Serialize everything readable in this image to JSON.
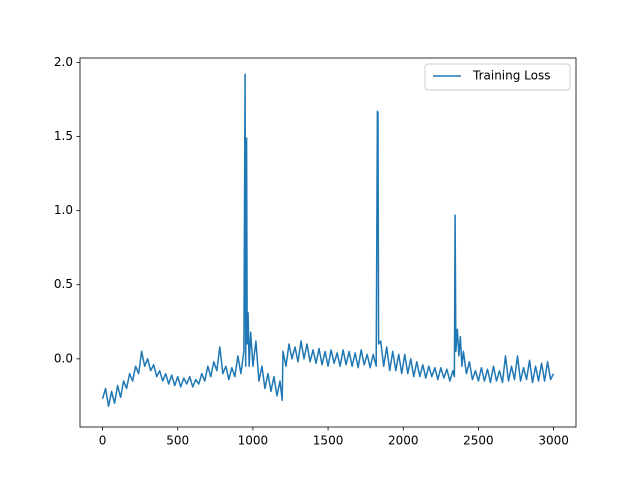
{
  "chart_data": {
    "type": "line",
    "x": [
      0,
      20,
      40,
      60,
      80,
      100,
      120,
      140,
      160,
      180,
      200,
      220,
      240,
      260,
      280,
      300,
      320,
      340,
      360,
      380,
      400,
      420,
      440,
      460,
      480,
      500,
      520,
      540,
      560,
      580,
      600,
      620,
      640,
      660,
      680,
      700,
      720,
      740,
      760,
      780,
      800,
      820,
      840,
      860,
      880,
      900,
      920,
      940,
      948,
      952,
      958,
      962,
      968,
      975,
      985,
      1000,
      1020,
      1040,
      1060,
      1080,
      1100,
      1120,
      1140,
      1160,
      1180,
      1195,
      1200,
      1220,
      1240,
      1260,
      1280,
      1300,
      1320,
      1340,
      1360,
      1380,
      1400,
      1420,
      1440,
      1460,
      1480,
      1500,
      1520,
      1540,
      1560,
      1580,
      1600,
      1620,
      1640,
      1660,
      1680,
      1700,
      1720,
      1740,
      1760,
      1780,
      1800,
      1820,
      1828,
      1832,
      1836,
      1850,
      1870,
      1890,
      1910,
      1930,
      1950,
      1970,
      1990,
      2010,
      2030,
      2050,
      2070,
      2090,
      2110,
      2130,
      2150,
      2170,
      2190,
      2210,
      2230,
      2250,
      2270,
      2290,
      2310,
      2330,
      2340,
      2345,
      2350,
      2360,
      2370,
      2380,
      2390,
      2400,
      2420,
      2440,
      2460,
      2480,
      2500,
      2520,
      2540,
      2560,
      2580,
      2600,
      2620,
      2640,
      2660,
      2680,
      2700,
      2720,
      2740,
      2760,
      2780,
      2800,
      2820,
      2840,
      2860,
      2880,
      2900,
      2920,
      2940,
      2960,
      2980,
      2999
    ],
    "series": [
      {
        "name": "Training Loss",
        "color": "#1f77b4",
        "values": [
          -0.27,
          -0.2,
          -0.32,
          -0.22,
          -0.3,
          -0.18,
          -0.26,
          -0.15,
          -0.2,
          -0.1,
          -0.15,
          -0.05,
          -0.1,
          0.05,
          -0.05,
          0.0,
          -0.08,
          -0.04,
          -0.12,
          -0.08,
          -0.15,
          -0.1,
          -0.17,
          -0.11,
          -0.18,
          -0.12,
          -0.19,
          -0.13,
          -0.17,
          -0.12,
          -0.19,
          -0.14,
          -0.17,
          -0.1,
          -0.15,
          -0.05,
          -0.12,
          -0.02,
          -0.08,
          0.08,
          -0.1,
          -0.05,
          -0.14,
          -0.06,
          -0.12,
          0.02,
          -0.1,
          0.05,
          1.92,
          -0.05,
          1.49,
          0.1,
          0.31,
          -0.05,
          0.18,
          -0.05,
          0.12,
          -0.15,
          -0.05,
          -0.2,
          -0.1,
          -0.22,
          -0.12,
          -0.25,
          -0.15,
          -0.28,
          0.05,
          -0.05,
          0.1,
          0.0,
          0.08,
          -0.02,
          0.12,
          0.0,
          0.1,
          -0.02,
          0.06,
          -0.03,
          0.07,
          -0.04,
          0.05,
          -0.05,
          0.06,
          -0.03,
          0.04,
          -0.05,
          0.06,
          -0.04,
          0.05,
          -0.05,
          0.04,
          -0.06,
          0.06,
          -0.04,
          0.03,
          -0.06,
          0.03,
          -0.05,
          1.67,
          1.66,
          0.1,
          0.12,
          -0.05,
          0.08,
          -0.08,
          0.05,
          -0.08,
          0.03,
          -0.1,
          0.03,
          -0.1,
          0.0,
          -0.12,
          -0.02,
          -0.12,
          -0.04,
          -0.13,
          -0.05,
          -0.12,
          -0.06,
          -0.14,
          -0.06,
          -0.13,
          -0.07,
          -0.15,
          -0.08,
          -0.12,
          0.97,
          0.05,
          0.2,
          0.02,
          0.15,
          -0.05,
          0.05,
          -0.1,
          -0.02,
          -0.14,
          -0.08,
          -0.15,
          -0.06,
          -0.15,
          -0.07,
          -0.16,
          -0.05,
          -0.15,
          -0.08,
          -0.16,
          0.02,
          -0.15,
          -0.05,
          -0.14,
          0.02,
          -0.15,
          -0.06,
          -0.14,
          -0.01,
          -0.16,
          -0.05,
          -0.15,
          -0.03,
          -0.15,
          -0.02,
          -0.14,
          -0.1
        ]
      }
    ],
    "xlim": [
      -150,
      3149
    ],
    "xticks": [
      0,
      500,
      1000,
      1500,
      2000,
      2500,
      3000
    ],
    "ylim": [
      -0.46,
      2.03
    ],
    "yticks": [
      {
        "value": 0,
        "label": "0.0"
      },
      {
        "value": 0.5,
        "label": "0.5"
      },
      {
        "value": 1,
        "label": "1.0"
      },
      {
        "value": 1.5,
        "label": "1.5"
      },
      {
        "value": 2,
        "label": "2.0"
      }
    ],
    "legend": "upper right",
    "grid": false
  }
}
